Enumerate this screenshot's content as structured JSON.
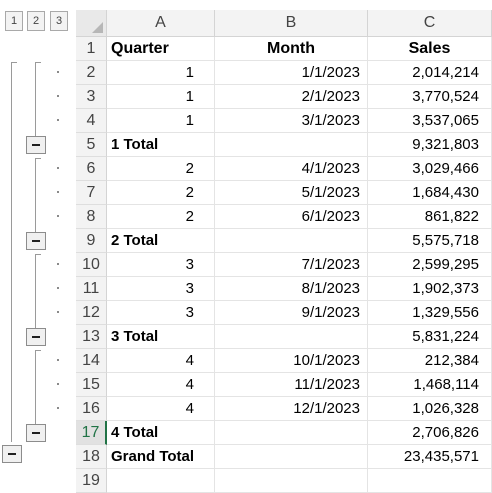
{
  "outline_levels": [
    "1",
    "2",
    "3"
  ],
  "columns": [
    "A",
    "B",
    "C"
  ],
  "header": {
    "row_num": "1",
    "quarter": "Quarter",
    "month": "Month",
    "sales": "Sales"
  },
  "rows": [
    {
      "num": "2",
      "quarter": "1",
      "month": "1/1/2023",
      "sales": "2,014,214",
      "type": "detail"
    },
    {
      "num": "3",
      "quarter": "1",
      "month": "2/1/2023",
      "sales": "3,770,524",
      "type": "detail"
    },
    {
      "num": "4",
      "quarter": "1",
      "month": "3/1/2023",
      "sales": "3,537,065",
      "type": "detail"
    },
    {
      "num": "5",
      "quarter": "1 Total",
      "month": "",
      "sales": "9,321,803",
      "type": "total"
    },
    {
      "num": "6",
      "quarter": "2",
      "month": "4/1/2023",
      "sales": "3,029,466",
      "type": "detail"
    },
    {
      "num": "7",
      "quarter": "2",
      "month": "5/1/2023",
      "sales": "1,684,430",
      "type": "detail"
    },
    {
      "num": "8",
      "quarter": "2",
      "month": "6/1/2023",
      "sales": "861,822",
      "type": "detail"
    },
    {
      "num": "9",
      "quarter": "2 Total",
      "month": "",
      "sales": "5,575,718",
      "type": "total"
    },
    {
      "num": "10",
      "quarter": "3",
      "month": "7/1/2023",
      "sales": "2,599,295",
      "type": "detail"
    },
    {
      "num": "11",
      "quarter": "3",
      "month": "8/1/2023",
      "sales": "1,902,373",
      "type": "detail"
    },
    {
      "num": "12",
      "quarter": "3",
      "month": "9/1/2023",
      "sales": "1,329,556",
      "type": "detail"
    },
    {
      "num": "13",
      "quarter": "3 Total",
      "month": "",
      "sales": "5,831,224",
      "type": "total"
    },
    {
      "num": "14",
      "quarter": "4",
      "month": "10/1/2023",
      "sales": "212,384",
      "type": "detail"
    },
    {
      "num": "15",
      "quarter": "4",
      "month": "11/1/2023",
      "sales": "1,468,114",
      "type": "detail"
    },
    {
      "num": "16",
      "quarter": "4",
      "month": "12/1/2023",
      "sales": "1,026,328",
      "type": "detail"
    },
    {
      "num": "17",
      "quarter": "4 Total",
      "month": "",
      "sales": "2,706,826",
      "type": "total"
    },
    {
      "num": "18",
      "quarter": "Grand Total",
      "month": "",
      "sales": "23,435,571",
      "type": "grand"
    },
    {
      "num": "19",
      "quarter": "",
      "month": "",
      "sales": "",
      "type": "empty"
    }
  ],
  "active_row": "17",
  "colors": {
    "header_bg": "#f3f3f3",
    "active_accent": "#217346",
    "gridline": "#e4e4e4"
  }
}
